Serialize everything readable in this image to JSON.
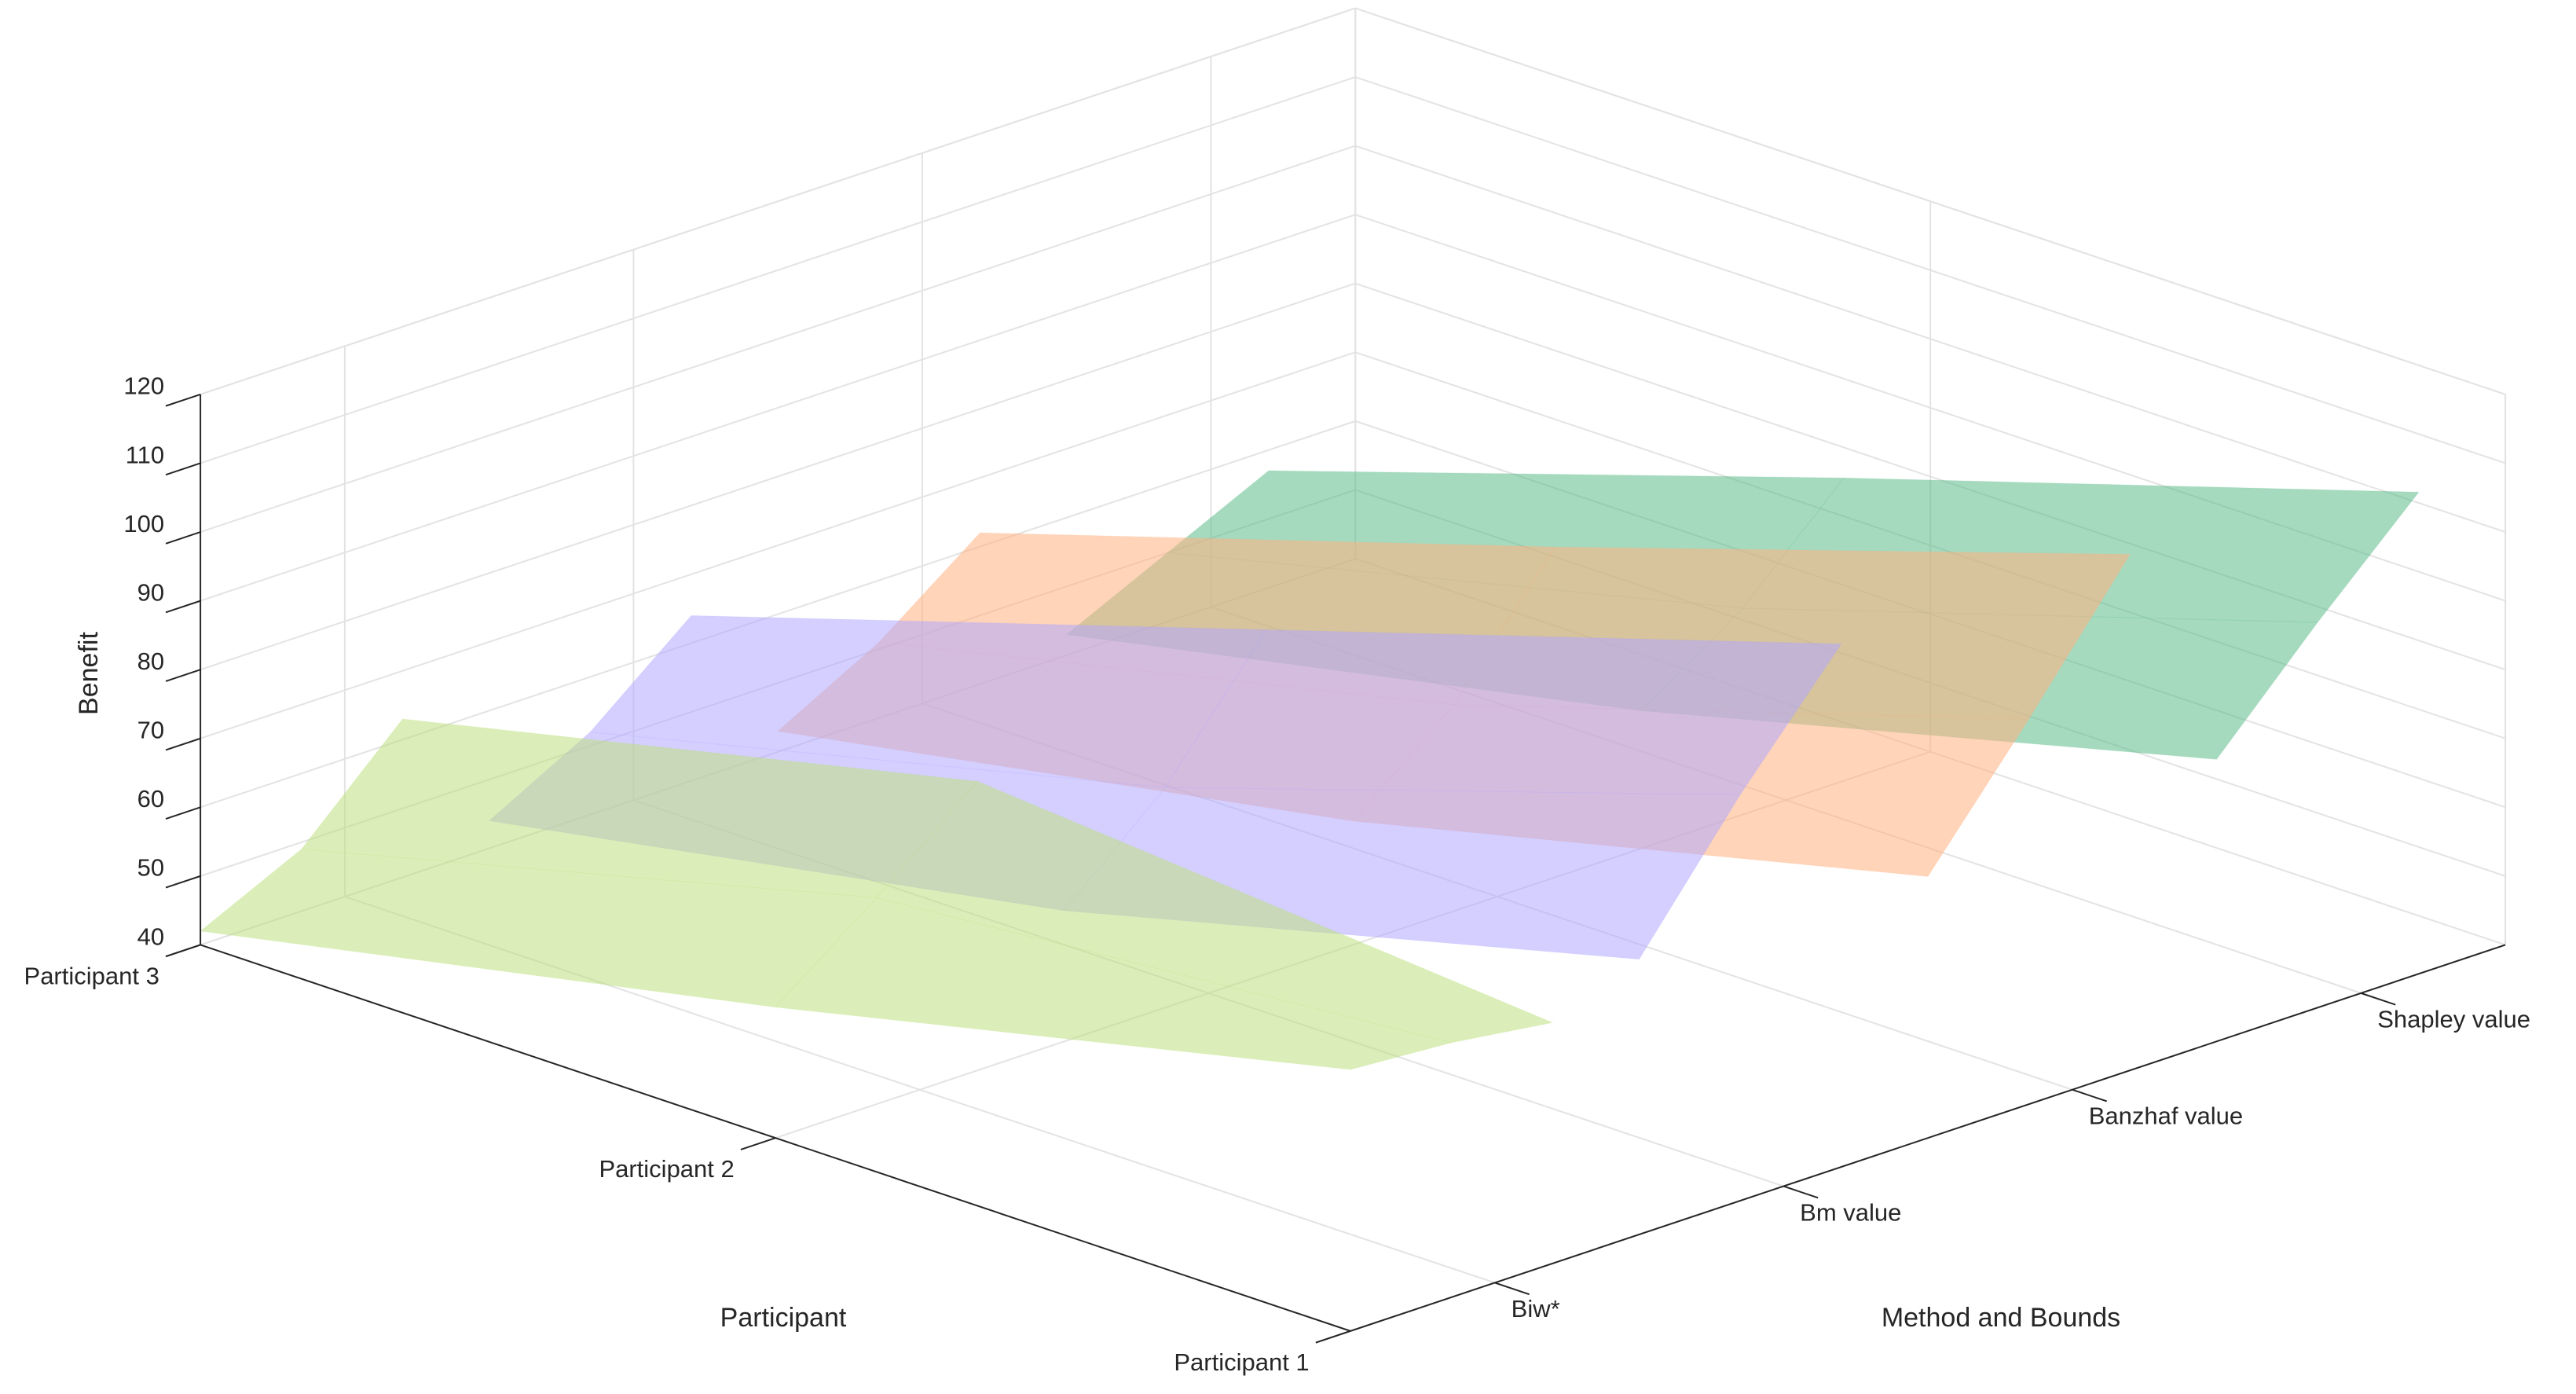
{
  "chart_data": {
    "type": "surface3d",
    "xlabel": "Method and Bounds",
    "ylabel": "Participant",
    "zlabel": "Benefit",
    "xlim": [
      0.5,
      4.5
    ],
    "xticks": [
      {
        "value": 1,
        "label": "Biw*"
      },
      {
        "value": 2,
        "label": "Bm value"
      },
      {
        "value": 3,
        "label": "Banzhaf value"
      },
      {
        "value": 4,
        "label": "Shapley value"
      }
    ],
    "ylim": [
      1,
      3
    ],
    "yticks": [
      {
        "value": 1,
        "label": "Participant 1"
      },
      {
        "value": 2,
        "label": "Participant 2"
      },
      {
        "value": 3,
        "label": "Participant 3"
      }
    ],
    "zlim": [
      40,
      120
    ],
    "zticks": [
      40,
      50,
      60,
      70,
      80,
      90,
      100,
      110,
      120
    ],
    "grid": true,
    "alpha": 0.55,
    "surfaces": [
      {
        "color": "#5dbb8a",
        "x": [
          3.5,
          3.85,
          4.2
        ],
        "y": [
          1,
          2,
          3
        ],
        "z": [
          [
            81,
            96,
            110
          ],
          [
            60,
            70,
            84
          ],
          [
            43,
            50,
            57
          ]
        ]
      },
      {
        "color": "#ffb080",
        "x": [
          2.5,
          2.85,
          3.2
        ],
        "y": [
          1,
          2,
          3
        ],
        "z": [
          [
            78,
            96,
            115
          ],
          [
            58,
            70,
            88
          ],
          [
            43,
            51,
            62
          ]
        ]
      },
      {
        "color": "#b0a8ff",
        "x": [
          1.5,
          1.85,
          2.2
        ],
        "y": [
          1,
          2,
          3
        ],
        "z": [
          [
            80,
            99,
            116
          ],
          [
            59,
            72,
            90
          ],
          [
            44,
            52,
            64
          ]
        ]
      },
      {
        "color": "#bde080",
        "x": [
          0.5,
          0.85,
          1.2
        ],
        "y": [
          1,
          2,
          3
        ],
        "z": [
          [
            78,
            77,
            75
          ],
          [
            59,
            70,
            82
          ],
          [
            42,
            49,
            63
          ]
        ]
      }
    ]
  }
}
